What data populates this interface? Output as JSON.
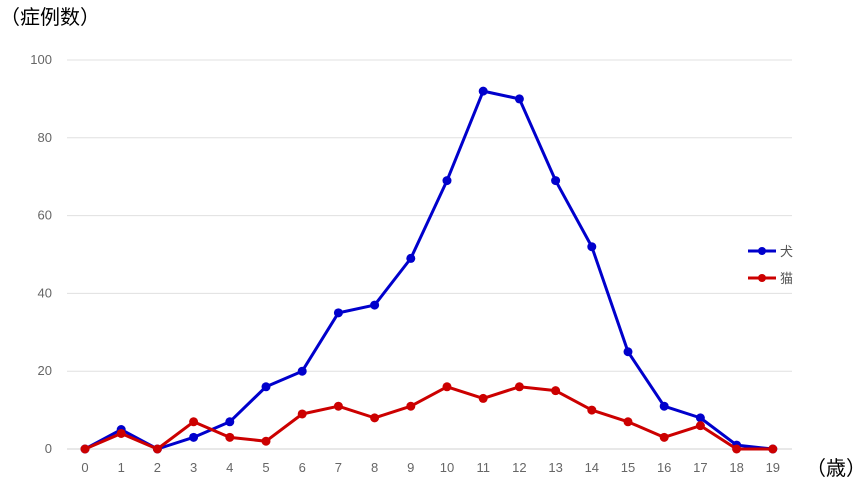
{
  "chart_data": {
    "type": "line",
    "title": "",
    "xlabel": "（歳）",
    "ylabel": "（症例数）",
    "categories": [
      "0",
      "1",
      "2",
      "3",
      "4",
      "5",
      "6",
      "7",
      "8",
      "9",
      "10",
      "11",
      "12",
      "13",
      "14",
      "15",
      "16",
      "17",
      "18",
      "19"
    ],
    "ylim": [
      0,
      100
    ],
    "yticks": [
      0,
      20,
      40,
      60,
      80,
      100
    ],
    "grid": true,
    "legend_position": "right",
    "series": [
      {
        "name": "犬",
        "color": "#0000cc",
        "values": [
          0,
          5,
          0,
          3,
          7,
          16,
          20,
          35,
          37,
          49,
          69,
          92,
          90,
          69,
          52,
          25,
          11,
          8,
          1,
          0
        ]
      },
      {
        "name": "猫",
        "color": "#cc0000",
        "values": [
          0,
          4,
          0,
          7,
          3,
          2,
          9,
          11,
          8,
          11,
          16,
          13,
          16,
          15,
          10,
          7,
          3,
          6,
          0,
          0
        ]
      }
    ]
  }
}
